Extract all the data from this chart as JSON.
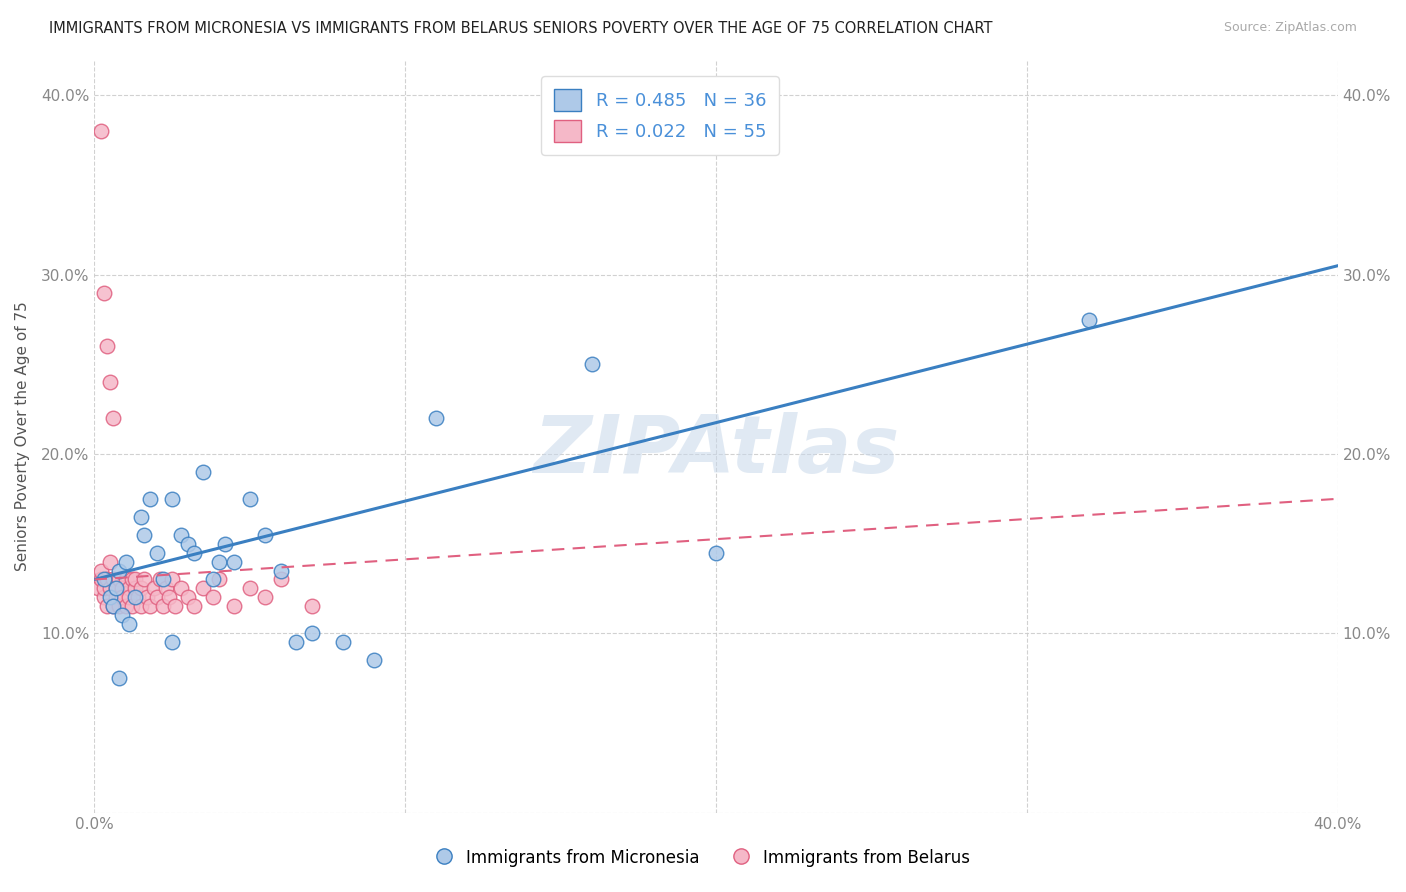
{
  "title": "IMMIGRANTS FROM MICRONESIA VS IMMIGRANTS FROM BELARUS SENIORS POVERTY OVER THE AGE OF 75 CORRELATION CHART",
  "source": "Source: ZipAtlas.com",
  "ylabel": "Seniors Poverty Over the Age of 75",
  "xlim": [
    0.0,
    0.4
  ],
  "ylim": [
    0.0,
    0.42
  ],
  "x_ticks": [
    0.0,
    0.1,
    0.2,
    0.3,
    0.4
  ],
  "x_tick_labels": [
    "0.0%",
    "",
    "",
    "",
    "40.0%"
  ],
  "y_ticks": [
    0.0,
    0.1,
    0.2,
    0.3,
    0.4
  ],
  "y_tick_labels": [
    "",
    "10.0%",
    "20.0%",
    "30.0%",
    "40.0%"
  ],
  "micronesia_R": 0.485,
  "micronesia_N": 36,
  "belarus_R": 0.022,
  "belarus_N": 55,
  "micronesia_color": "#aec9e8",
  "belarus_color": "#f5b8c8",
  "micronesia_line_color": "#3a7fc1",
  "belarus_line_color": "#e06080",
  "watermark": "ZIPAtlas",
  "background_color": "#ffffff",
  "micronesia_x": [
    0.003,
    0.005,
    0.006,
    0.007,
    0.008,
    0.009,
    0.01,
    0.011,
    0.013,
    0.015,
    0.016,
    0.018,
    0.02,
    0.022,
    0.025,
    0.028,
    0.03,
    0.032,
    0.035,
    0.038,
    0.04,
    0.042,
    0.045,
    0.05,
    0.055,
    0.06,
    0.065,
    0.07,
    0.08,
    0.09,
    0.11,
    0.16,
    0.2,
    0.32,
    0.008,
    0.025
  ],
  "micronesia_y": [
    0.13,
    0.12,
    0.115,
    0.125,
    0.135,
    0.11,
    0.14,
    0.105,
    0.12,
    0.165,
    0.155,
    0.175,
    0.145,
    0.13,
    0.175,
    0.155,
    0.15,
    0.145,
    0.19,
    0.13,
    0.14,
    0.15,
    0.14,
    0.175,
    0.155,
    0.135,
    0.095,
    0.1,
    0.095,
    0.085,
    0.22,
    0.25,
    0.145,
    0.275,
    0.075,
    0.095
  ],
  "belarus_x": [
    0.001,
    0.002,
    0.002,
    0.003,
    0.003,
    0.004,
    0.004,
    0.005,
    0.005,
    0.006,
    0.006,
    0.007,
    0.007,
    0.008,
    0.008,
    0.009,
    0.009,
    0.01,
    0.01,
    0.011,
    0.011,
    0.012,
    0.012,
    0.013,
    0.013,
    0.014,
    0.015,
    0.015,
    0.016,
    0.017,
    0.018,
    0.019,
    0.02,
    0.021,
    0.022,
    0.023,
    0.024,
    0.025,
    0.026,
    0.028,
    0.03,
    0.032,
    0.035,
    0.038,
    0.04,
    0.045,
    0.05,
    0.055,
    0.06,
    0.07,
    0.002,
    0.003,
    0.004,
    0.005,
    0.006
  ],
  "belarus_y": [
    0.125,
    0.13,
    0.135,
    0.12,
    0.125,
    0.13,
    0.115,
    0.125,
    0.14,
    0.13,
    0.115,
    0.12,
    0.125,
    0.115,
    0.13,
    0.125,
    0.12,
    0.115,
    0.13,
    0.125,
    0.12,
    0.13,
    0.115,
    0.125,
    0.13,
    0.12,
    0.115,
    0.125,
    0.13,
    0.12,
    0.115,
    0.125,
    0.12,
    0.13,
    0.115,
    0.125,
    0.12,
    0.13,
    0.115,
    0.125,
    0.12,
    0.115,
    0.125,
    0.12,
    0.13,
    0.115,
    0.125,
    0.12,
    0.13,
    0.115,
    0.38,
    0.29,
    0.26,
    0.24,
    0.22
  ],
  "mic_line_x0": 0.0,
  "mic_line_y0": 0.13,
  "mic_line_x1": 0.4,
  "mic_line_y1": 0.305,
  "bel_line_x0": 0.0,
  "bel_line_y0": 0.13,
  "bel_line_x1": 0.4,
  "bel_line_y1": 0.175
}
